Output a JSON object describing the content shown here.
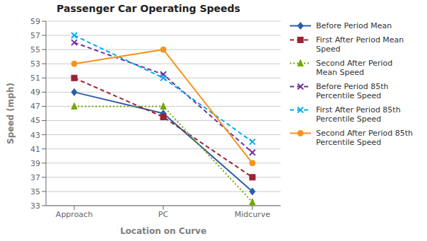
{
  "chart_data": {
    "type": "line",
    "title": "Passenger Car Operating Speeds",
    "x_label": "Location on Curve",
    "y_label": "Speed (mph)",
    "categories": [
      "Approach",
      "PC",
      "Midcurve"
    ],
    "series": [
      {
        "name": "Before Period Mean",
        "color": "#2E5EA8",
        "line_style": "solid",
        "marker": "diamond",
        "values": [
          49,
          46,
          35
        ]
      },
      {
        "name": "First After Period Mean\nSpeed",
        "color": "#9B2335",
        "line_style": "dashed",
        "marker": "square",
        "values": [
          51,
          45.5,
          37
        ]
      },
      {
        "name": "Second After Period\nMean Speed",
        "color": "#70A800",
        "line_style": "dotted",
        "marker": "triangle",
        "values": [
          47,
          47,
          33.5
        ]
      },
      {
        "name": "Before Period 85th\nPercentile Speed",
        "color": "#7030A0",
        "line_style": "dashed",
        "marker": "x",
        "values": [
          56,
          51.5,
          40.5
        ]
      },
      {
        "name": "First After Period 85th\nPercentile Speed",
        "color": "#00AEEF",
        "line_style": "dashed",
        "marker": "x",
        "values": [
          57,
          51,
          42
        ]
      },
      {
        "name": "Second After Period 85th\nPercentile Speed",
        "color": "#F7941D",
        "line_style": "solid",
        "marker": "circle",
        "values": [
          53,
          55,
          39
        ]
      }
    ],
    "ylim": [
      33,
      59
    ],
    "yticks": [
      33,
      35,
      37,
      39,
      41,
      43,
      45,
      47,
      49,
      51,
      53,
      55,
      57,
      59
    ],
    "grid": true,
    "legend": "right"
  }
}
